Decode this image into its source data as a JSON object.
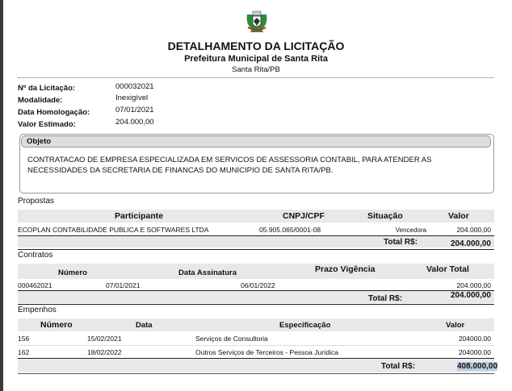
{
  "header": {
    "logo": "municipal-coat-of-arms",
    "title": "DETALHAMENTO DA LICITAÇÃO",
    "subtitle": "Prefeitura Municipal de Santa Rita",
    "location": "Santa Rita/PB"
  },
  "fields": [
    {
      "label": "Nº da Licitação:",
      "value": "000032021"
    },
    {
      "label": "Modalidade:",
      "value": "Inexigível"
    },
    {
      "label": "Data Homologação:",
      "value": "07/01/2021"
    },
    {
      "label": "Valor Estimado:",
      "value": "204.000,00"
    }
  ],
  "objeto": {
    "label": "Objeto",
    "text": "CONTRATACAO DE EMPRESA ESPECIALIZADA EM SERVICOS DE  ASSESSORIA CONTABIL, PARA ATENDER AS NECESSIDADES DA SECRETARIA DE FINANCAS DO MUNICIPIO DE  SANTA RITA/PB."
  },
  "propostas": {
    "label": "Propostas",
    "columns": [
      "Participante",
      "CNPJ/CPF",
      "Situação",
      "Valor"
    ],
    "rows": [
      [
        "ECOPLAN CONTABILIDADE PUBLICA E SOFTWARES LTDA",
        "05.905.065/0001-08",
        "Vencedora",
        "204.000,00"
      ]
    ],
    "total_label": "Total R$:",
    "total": "204.000,00"
  },
  "contratos": {
    "label": "Contratos",
    "columns": [
      "Número",
      "Data Assinatura",
      "Prazo Vigência",
      "Valor Total"
    ],
    "rows": [
      [
        "000462021",
        "07/01/2021",
        "06/01/2022",
        "204.000,00"
      ]
    ],
    "total_label": "Total R$:",
    "total": "204.000,00"
  },
  "empenhos": {
    "label": "Empenhos",
    "columns": [
      "Número",
      "Data",
      "Especificação",
      "Valor"
    ],
    "rows": [
      [
        "156",
        "15/02/2021",
        "Serviços de Consultoria",
        "204000.00"
      ],
      [
        "162",
        "18/02/2022",
        "Outros Serviços de Terceiros - Pessoa Jurídica",
        "204000.00"
      ]
    ],
    "total_label": "Total R$:",
    "total": "408.000,00"
  }
}
